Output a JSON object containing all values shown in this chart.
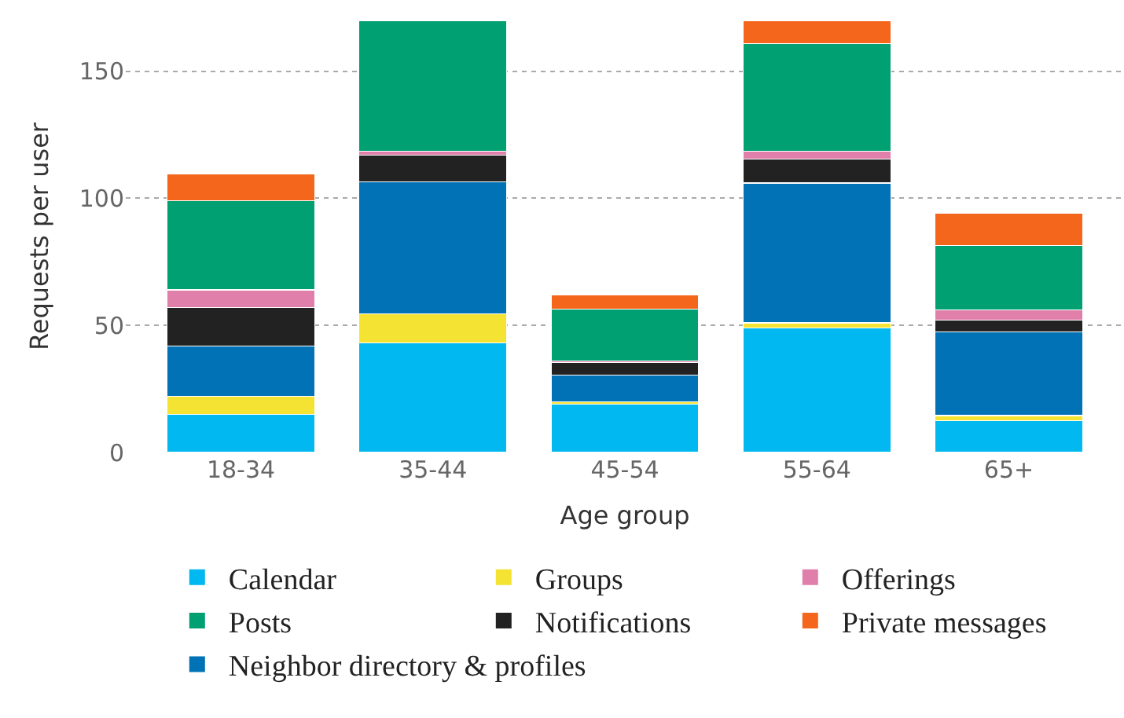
{
  "chart_data": {
    "type": "bar",
    "stacked": true,
    "xlabel": "Age group",
    "ylabel": "Requests per user",
    "categories": [
      "18-34",
      "35-44",
      "45-54",
      "55-64",
      "65+"
    ],
    "ylim": [
      0,
      170
    ],
    "yticks": [
      0,
      50,
      100,
      150
    ],
    "grid": "y",
    "legend": "bottom",
    "series": [
      {
        "name": "Calendar",
        "color": "#01b8f0",
        "values": [
          15,
          43,
          19,
          49,
          12.5
        ]
      },
      {
        "name": "Groups",
        "color": "#f5e333",
        "values": [
          7,
          11.5,
          1,
          2,
          2
        ]
      },
      {
        "name": "Neighbor directory & profiles",
        "color": "#0072b5",
        "values": [
          20,
          52,
          10.5,
          55,
          33
        ]
      },
      {
        "name": "Notifications",
        "color": "#222222",
        "values": [
          15,
          10.5,
          5,
          9.5,
          4.5
        ]
      },
      {
        "name": "Offerings",
        "color": "#e17fab",
        "values": [
          7,
          1.5,
          0.5,
          3,
          4
        ]
      },
      {
        "name": "Posts",
        "color": "#00a073",
        "values": [
          35,
          51.5,
          20.5,
          42.5,
          25.5
        ]
      },
      {
        "name": "Private messages",
        "color": "#f4661b",
        "values": [
          10.5,
          null,
          5.5,
          9,
          12.5
        ]
      }
    ]
  }
}
